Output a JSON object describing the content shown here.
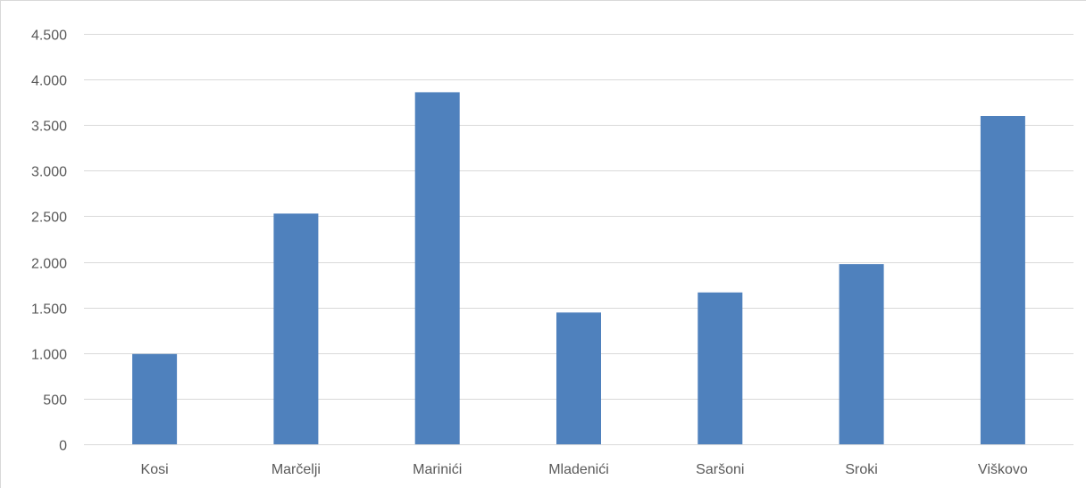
{
  "chart_data": {
    "type": "bar",
    "categories": [
      "Kosi",
      "Marčelji",
      "Marinići",
      "Mladenići",
      "Saršoni",
      "Sroki",
      "Viškovo"
    ],
    "values": [
      990,
      2530,
      3860,
      1445,
      1665,
      1975,
      3600
    ],
    "title": "",
    "xlabel": "",
    "ylabel": "",
    "ylim": [
      0,
      4500
    ],
    "yticks": [
      0,
      500,
      1000,
      1500,
      2000,
      2500,
      3000,
      3500,
      4000,
      4500
    ],
    "ytick_labels": [
      "0",
      "500",
      "1.000",
      "1.500",
      "2.000",
      "2.500",
      "3.000",
      "3.500",
      "4.000",
      "4.500"
    ],
    "grid": true,
    "legend": "none",
    "bar_color": "#4f81bd",
    "grid_color": "#d9d9d9"
  }
}
